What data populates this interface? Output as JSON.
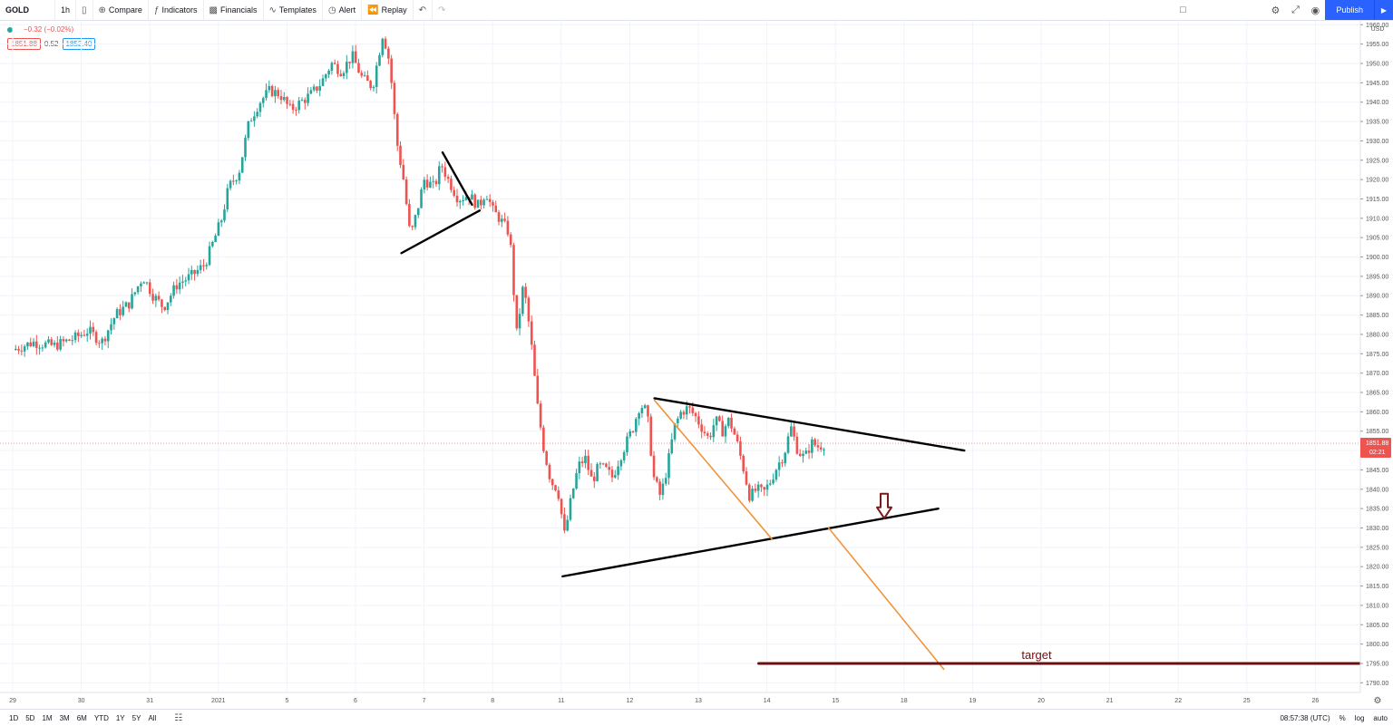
{
  "toolbar": {
    "symbol": "GOLD",
    "interval": "1h",
    "compare": "Compare",
    "indicators": "Indicators",
    "financials": "Financials",
    "templates": "Templates",
    "alert": "Alert",
    "replay": "Replay",
    "publish": "Publish"
  },
  "legend": {
    "change": "−0.32 (−0.02%)",
    "bid": "1851.88",
    "spread": "0.52",
    "ask": "1852.40"
  },
  "bottom": {
    "ranges": [
      "1D",
      "5D",
      "1M",
      "3M",
      "6M",
      "YTD",
      "1Y",
      "5Y",
      "All"
    ],
    "time": "08:57:38 (UTC)",
    "percent": "%",
    "log": "log",
    "auto": "auto"
  },
  "colors": {
    "up": "#26a69a",
    "down": "#ef5350",
    "target": "#6b1010",
    "projection": "#f0953a",
    "trendline": "#000000"
  },
  "chart_data": {
    "type": "candlestick",
    "currency": "USD",
    "y_ticks": [
      1790,
      1795,
      1800,
      1805,
      1810,
      1815,
      1820,
      1825,
      1830,
      1835,
      1840,
      1845,
      1850,
      1855,
      1860,
      1865,
      1870,
      1875,
      1880,
      1885,
      1890,
      1895,
      1900,
      1905,
      1910,
      1915,
      1920,
      1925,
      1930,
      1935,
      1940,
      1945,
      1950,
      1955,
      1960
    ],
    "ylim": [
      1787.5,
      1961
    ],
    "x_ticks": [
      {
        "label": "29",
        "d": 0
      },
      {
        "label": "30",
        "d": 1
      },
      {
        "label": "31",
        "d": 2
      },
      {
        "label": "2021",
        "d": 3
      },
      {
        "label": "5",
        "d": 4
      },
      {
        "label": "6",
        "d": 5
      },
      {
        "label": "7",
        "d": 6
      },
      {
        "label": "8",
        "d": 7
      },
      {
        "label": "11",
        "d": 8
      },
      {
        "label": "12",
        "d": 9
      },
      {
        "label": "13",
        "d": 10
      },
      {
        "label": "14",
        "d": 11
      },
      {
        "label": "15",
        "d": 12
      },
      {
        "label": "18",
        "d": 13
      },
      {
        "label": "19",
        "d": 14
      },
      {
        "label": "20",
        "d": 15
      },
      {
        "label": "21",
        "d": 16
      },
      {
        "label": "22",
        "d": 17
      },
      {
        "label": "25",
        "d": 18
      },
      {
        "label": "26",
        "d": 19
      }
    ],
    "last_price": "1851.88",
    "countdown": "02:21",
    "price_path": [
      [
        0,
        1876
      ],
      [
        0.3,
        1878
      ],
      [
        0.6,
        1877
      ],
      [
        0.9,
        1879
      ],
      [
        1.1,
        1881
      ],
      [
        1.3,
        1878
      ],
      [
        1.5,
        1885
      ],
      [
        1.7,
        1888
      ],
      [
        1.9,
        1895
      ],
      [
        2.05,
        1890
      ],
      [
        2.2,
        1887
      ],
      [
        2.4,
        1893
      ],
      [
        2.6,
        1895
      ],
      [
        2.8,
        1898
      ],
      [
        2.95,
        1905
      ],
      [
        3.05,
        1910
      ],
      [
        3.15,
        1918
      ],
      [
        3.3,
        1922
      ],
      [
        3.45,
        1935
      ],
      [
        3.6,
        1940
      ],
      [
        3.75,
        1943
      ],
      [
        3.9,
        1942
      ],
      [
        4.05,
        1938
      ],
      [
        4.2,
        1940
      ],
      [
        4.35,
        1942
      ],
      [
        4.5,
        1945
      ],
      [
        4.65,
        1950
      ],
      [
        4.8,
        1948
      ],
      [
        4.95,
        1952
      ],
      [
        5.1,
        1946
      ],
      [
        5.25,
        1944
      ],
      [
        5.4,
        1958
      ],
      [
        5.5,
        1950
      ],
      [
        5.6,
        1930
      ],
      [
        5.7,
        1920
      ],
      [
        5.8,
        1905
      ],
      [
        5.9,
        1912
      ],
      [
        6.0,
        1920
      ],
      [
        6.15,
        1918
      ],
      [
        6.25,
        1924
      ],
      [
        6.35,
        1920
      ],
      [
        6.5,
        1915
      ],
      [
        6.65,
        1916
      ],
      [
        6.8,
        1913
      ],
      [
        6.9,
        1917
      ],
      [
        7.0,
        1912
      ],
      [
        7.1,
        1910
      ],
      [
        7.25,
        1906
      ],
      [
        7.35,
        1880
      ],
      [
        7.45,
        1893
      ],
      [
        7.55,
        1880
      ],
      [
        7.65,
        1862
      ],
      [
        7.75,
        1850
      ],
      [
        7.85,
        1842
      ],
      [
        7.95,
        1840
      ],
      [
        8.05,
        1828
      ],
      [
        8.15,
        1838
      ],
      [
        8.25,
        1846
      ],
      [
        8.35,
        1848
      ],
      [
        8.45,
        1842
      ],
      [
        8.55,
        1846
      ],
      [
        8.65,
        1845
      ],
      [
        8.75,
        1843
      ],
      [
        8.85,
        1848
      ],
      [
        8.95,
        1852
      ],
      [
        9.05,
        1856
      ],
      [
        9.15,
        1862
      ],
      [
        9.25,
        1860
      ],
      [
        9.35,
        1843
      ],
      [
        9.45,
        1838
      ],
      [
        9.55,
        1846
      ],
      [
        9.65,
        1856
      ],
      [
        9.75,
        1860
      ],
      [
        9.85,
        1861
      ],
      [
        9.95,
        1859
      ],
      [
        10.05,
        1856
      ],
      [
        10.15,
        1853
      ],
      [
        10.25,
        1858
      ],
      [
        10.35,
        1855
      ],
      [
        10.45,
        1858
      ],
      [
        10.55,
        1853
      ],
      [
        10.65,
        1846
      ],
      [
        10.75,
        1838
      ],
      [
        10.85,
        1840
      ],
      [
        10.95,
        1839
      ],
      [
        11.05,
        1842
      ],
      [
        11.15,
        1846
      ],
      [
        11.25,
        1849
      ],
      [
        11.35,
        1856
      ],
      [
        11.45,
        1850
      ],
      [
        11.55,
        1848
      ],
      [
        11.65,
        1852
      ],
      [
        11.75,
        1851
      ],
      [
        11.85,
        1851.88
      ]
    ],
    "annotations": {
      "target_label": "target",
      "target_price": 1795
    }
  }
}
